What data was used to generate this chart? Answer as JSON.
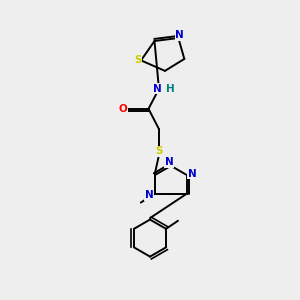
{
  "background_color": "#eeeeee",
  "bond_color": "#000000",
  "atom_colors": {
    "N": "#0000cc",
    "S": "#cccc00",
    "O": "#ff0000",
    "H": "#008080",
    "C": "#000000"
  },
  "figsize": [
    3.0,
    3.0
  ],
  "dpi": 100
}
